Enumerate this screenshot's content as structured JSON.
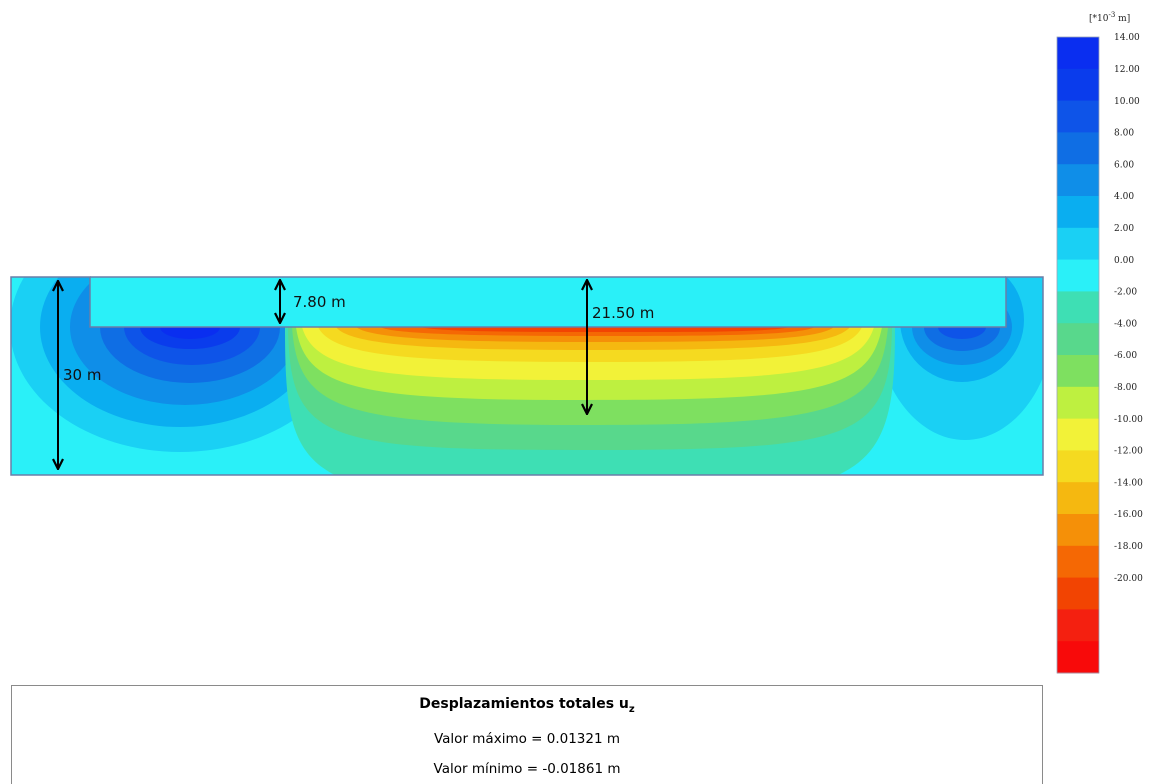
{
  "diagram": {
    "dimensions": {
      "excavation_depth": "7.80 m",
      "influence_depth": "21.50 m",
      "model_depth": "30 m"
    },
    "colors": {
      "background_cyan": "#2af0f8",
      "excavation_fill": "#ffffff",
      "outline": "#6a7ea8"
    }
  },
  "legend": {
    "unit_prefix": "[*10",
    "unit_exp": "-3",
    "unit_suffix": " m]",
    "ticks": [
      "14.00",
      "12.00",
      "10.00",
      "8.00",
      "6.00",
      "4.00",
      "2.00",
      "0.00",
      "-2.00",
      "-4.00",
      "-6.00",
      "-8.00",
      "-10.00",
      "-12.00",
      "-14.00",
      "-16.00",
      "-18.00",
      "-20.00"
    ],
    "colors": [
      "#0a2ef0",
      "#0a3cec",
      "#0e54e8",
      "#0f6ee4",
      "#0f8ee8",
      "#0aaef0",
      "#1ad0f4",
      "#2af0f8",
      "#3edfb4",
      "#58d88c",
      "#7ee060",
      "#bef040",
      "#f2f238",
      "#f5da20",
      "#f5b810",
      "#f59008",
      "#f56804",
      "#f24402",
      "#f42010",
      "#f80a0a"
    ]
  },
  "results": {
    "title": "Desplazamientos totales u",
    "title_subscript": "z",
    "max_label": "Valor máximo = 0.01321 m",
    "min_label": "Valor mínimo = -0.01861 m"
  }
}
